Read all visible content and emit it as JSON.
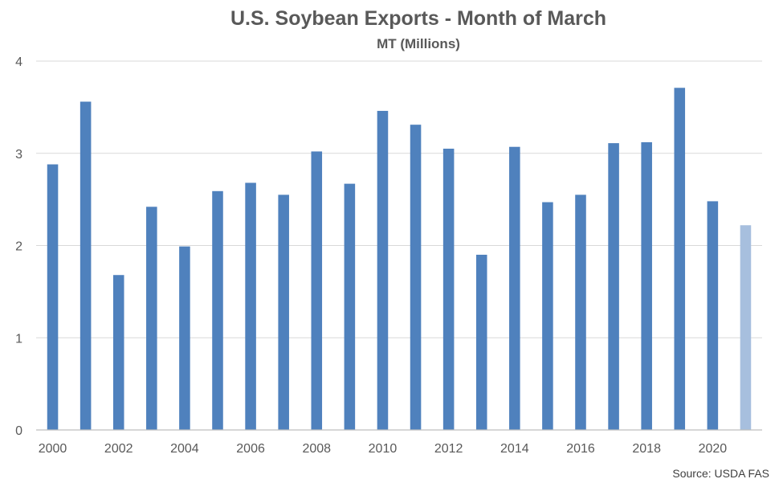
{
  "chart_data": {
    "type": "bar",
    "title": "U.S. Soybean Exports - Month of March",
    "subtitle": "MT (Millions)",
    "source": "Source: USDA FAS",
    "xlabel": "",
    "ylabel": "",
    "ylim": [
      0,
      4
    ],
    "yticks": [
      0,
      1,
      2,
      3,
      4
    ],
    "grid": true,
    "legend": "none",
    "categories": [
      "2000",
      "2001",
      "2002",
      "2003",
      "2004",
      "2005",
      "2006",
      "2007",
      "2008",
      "2009",
      "2010",
      "2011",
      "2012",
      "2013",
      "2014",
      "2015",
      "2016",
      "2017",
      "2018",
      "2019",
      "2020",
      "2021"
    ],
    "x_tick_labels": [
      "2000",
      "2002",
      "2004",
      "2006",
      "2008",
      "2010",
      "2012",
      "2014",
      "2016",
      "2018",
      "2020"
    ],
    "values": [
      2.88,
      3.56,
      1.68,
      2.42,
      1.99,
      2.59,
      2.68,
      2.55,
      3.02,
      2.67,
      3.46,
      3.31,
      3.05,
      1.9,
      3.07,
      2.47,
      2.55,
      3.11,
      3.12,
      3.71,
      2.48,
      2.22
    ],
    "colors": {
      "bar": "#4f81bd",
      "highlight": "#a7bfde"
    },
    "highlight_categories": [
      "2021"
    ]
  }
}
